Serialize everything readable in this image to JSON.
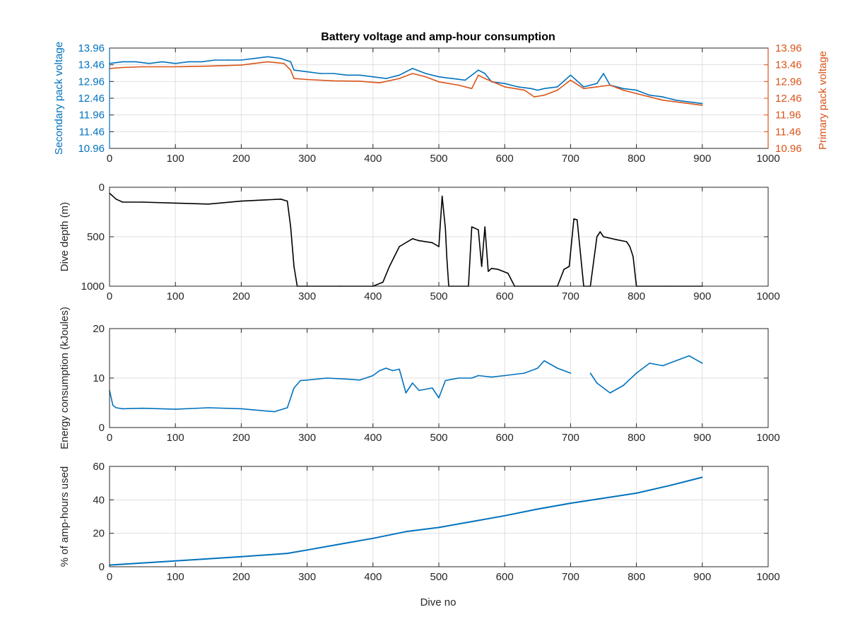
{
  "figure_title": "Battery voltage and amp-hour consumption",
  "colors": {
    "secondary": "#0072BD",
    "primary": "#D95319",
    "depth": "#000000",
    "energy": "#0072BD",
    "amp": "#0072BD",
    "grid": "#dfdfdf",
    "axis": "#262626"
  },
  "chart_data": [
    {
      "type": "line",
      "title": "Battery voltage and amp-hour consumption",
      "xlabel": "",
      "ylabel": "Secondary pack voltage",
      "ylabel_right": "Primary pack voltage",
      "xlim": [
        0,
        1000
      ],
      "ylim": [
        10.96,
        13.96
      ],
      "xticks": [
        "0",
        "100",
        "200",
        "300",
        "400",
        "500",
        "600",
        "700",
        "800",
        "900",
        "1000"
      ],
      "yticks": [
        "10.96",
        "11.46",
        "11.96",
        "12.46",
        "12.96",
        "13.46",
        "13.96"
      ],
      "grid": true,
      "series": [
        {
          "name": "Secondary pack voltage",
          "axis": "left",
          "x": [
            0,
            20,
            40,
            60,
            80,
            100,
            120,
            140,
            160,
            180,
            200,
            220,
            240,
            260,
            275,
            280,
            300,
            320,
            340,
            360,
            380,
            400,
            420,
            440,
            460,
            480,
            500,
            520,
            540,
            560,
            570,
            580,
            600,
            620,
            640,
            650,
            660,
            680,
            700,
            720,
            740,
            750,
            760,
            780,
            800,
            820,
            840,
            860,
            880,
            900
          ],
          "y": [
            13.5,
            13.55,
            13.55,
            13.5,
            13.55,
            13.5,
            13.55,
            13.55,
            13.6,
            13.6,
            13.6,
            13.65,
            13.7,
            13.65,
            13.55,
            13.3,
            13.25,
            13.2,
            13.2,
            13.15,
            13.15,
            13.1,
            13.05,
            13.15,
            13.35,
            13.2,
            13.1,
            13.05,
            13.0,
            13.3,
            13.2,
            12.95,
            12.9,
            12.8,
            12.75,
            12.7,
            12.75,
            12.8,
            13.15,
            12.8,
            12.9,
            13.2,
            12.85,
            12.75,
            12.7,
            12.55,
            12.5,
            12.4,
            12.35,
            12.3
          ]
        },
        {
          "name": "Primary pack voltage",
          "axis": "right",
          "x": [
            0,
            20,
            50,
            100,
            150,
            200,
            240,
            265,
            275,
            280,
            300,
            340,
            380,
            410,
            440,
            460,
            480,
            500,
            530,
            550,
            560,
            570,
            600,
            630,
            645,
            660,
            680,
            700,
            720,
            740,
            760,
            780,
            800,
            840,
            880,
            900
          ],
          "y": [
            13.35,
            13.38,
            13.4,
            13.4,
            13.42,
            13.45,
            13.55,
            13.5,
            13.3,
            13.05,
            13.02,
            12.98,
            12.97,
            12.92,
            13.05,
            13.2,
            13.1,
            12.95,
            12.85,
            12.75,
            13.15,
            13.05,
            12.8,
            12.7,
            12.5,
            12.55,
            12.7,
            13.0,
            12.75,
            12.8,
            12.85,
            12.7,
            12.6,
            12.4,
            12.3,
            12.25
          ]
        }
      ]
    },
    {
      "type": "line",
      "title": "",
      "xlabel": "",
      "ylabel": "Dive depth (m)",
      "xlim": [
        0,
        1000
      ],
      "ylim": [
        0,
        1000
      ],
      "y_reversed": true,
      "xticks": [
        "0",
        "100",
        "200",
        "300",
        "400",
        "500",
        "600",
        "700",
        "800",
        "900",
        "1000"
      ],
      "yticks": [
        "0",
        "500",
        "1000"
      ],
      "grid": true,
      "series": [
        {
          "x": [
            0,
            10,
            20,
            50,
            100,
            150,
            200,
            230,
            260,
            270,
            275,
            280,
            285,
            350,
            400,
            415,
            425,
            440,
            460,
            470,
            490,
            500,
            505,
            510,
            512,
            515,
            545,
            550,
            560,
            565,
            570,
            575,
            580,
            590,
            605,
            615,
            680,
            690,
            698,
            705,
            710,
            720,
            730,
            740,
            745,
            750,
            770,
            785,
            790,
            795,
            800,
            850,
            900
          ],
          "y": [
            60,
            120,
            150,
            150,
            160,
            170,
            140,
            130,
            120,
            140,
            400,
            800,
            1000,
            1000,
            1000,
            960,
            800,
            600,
            520,
            540,
            560,
            600,
            90,
            420,
            700,
            1000,
            1000,
            400,
            430,
            800,
            400,
            850,
            820,
            830,
            870,
            1000,
            1000,
            830,
            800,
            320,
            330,
            1000,
            1000,
            500,
            450,
            500,
            530,
            550,
            600,
            700,
            1000,
            1000,
            1000
          ]
        }
      ]
    },
    {
      "type": "line",
      "title": "",
      "xlabel": "",
      "ylabel": "Energy consumption (kJoules)",
      "xlim": [
        0,
        1000
      ],
      "ylim": [
        0,
        20
      ],
      "xticks": [
        "0",
        "100",
        "200",
        "300",
        "400",
        "500",
        "600",
        "700",
        "800",
        "900",
        "1000"
      ],
      "yticks": [
        "0",
        "10",
        "20"
      ],
      "grid": true,
      "series": [
        {
          "x": [
            0,
            5,
            10,
            20,
            50,
            100,
            150,
            200,
            250,
            270,
            280,
            290,
            300,
            330,
            360,
            380,
            400,
            410,
            420,
            430,
            440,
            450,
            460,
            470,
            490,
            500,
            510,
            530,
            550,
            560,
            580,
            600,
            630,
            650,
            660,
            680,
            700,
            710,
            730,
            740,
            760,
            780,
            800,
            820,
            840,
            860,
            880,
            900
          ],
          "y": [
            7.5,
            4.5,
            4.0,
            3.8,
            3.9,
            3.7,
            4.0,
            3.8,
            3.2,
            4.0,
            8.0,
            9.5,
            9.6,
            10.0,
            9.8,
            9.6,
            10.5,
            11.5,
            12.0,
            11.5,
            11.8,
            7.0,
            9.0,
            7.5,
            8.0,
            6.0,
            9.5,
            10.0,
            10.0,
            10.5,
            10.2,
            10.5,
            11.0,
            12.0,
            13.5,
            12.0,
            11.0,
            null,
            11.0,
            9.0,
            7.0,
            8.5,
            11.0,
            13.0,
            12.5,
            13.5,
            14.5,
            13.0
          ]
        }
      ]
    },
    {
      "type": "line",
      "title": "",
      "xlabel": "Dive no",
      "ylabel": "% of amp-hours used",
      "xlim": [
        0,
        1000
      ],
      "ylim": [
        0,
        60
      ],
      "xticks": [
        "0",
        "100",
        "200",
        "300",
        "400",
        "500",
        "600",
        "700",
        "800",
        "900",
        "1000"
      ],
      "yticks": [
        "0",
        "20",
        "40",
        "60"
      ],
      "grid": true,
      "series": [
        {
          "x": [
            0,
            100,
            200,
            270,
            300,
            350,
            400,
            450,
            500,
            550,
            600,
            650,
            700,
            750,
            800,
            850,
            900
          ],
          "y": [
            1.0,
            3.5,
            6.0,
            8.0,
            10.0,
            13.5,
            17.0,
            21.0,
            23.5,
            27.0,
            30.5,
            34.5,
            38.0,
            41.0,
            44.0,
            48.5,
            53.5
          ]
        }
      ]
    }
  ]
}
